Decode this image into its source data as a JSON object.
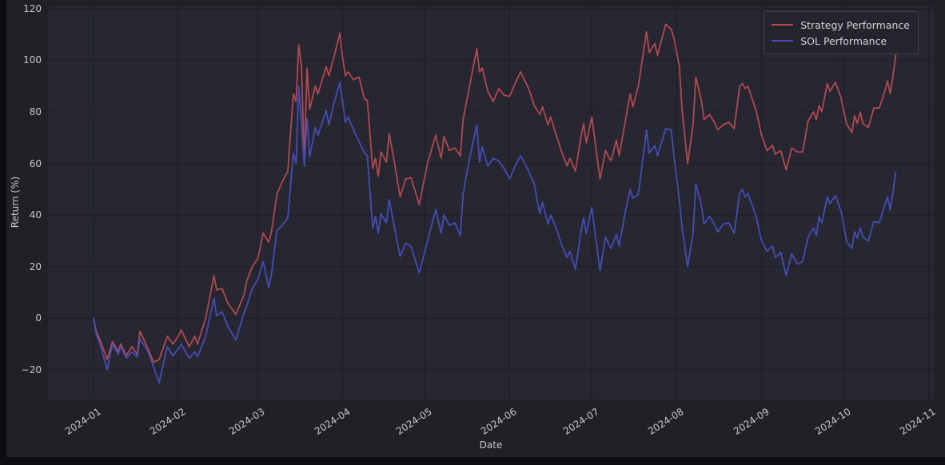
{
  "figure": {
    "x_axis": {
      "label": "Date",
      "tick_labels": [
        "2024-01",
        "2024-02",
        "2024-03",
        "2024-04",
        "2024-05",
        "2024-06",
        "2024-07",
        "2024-08",
        "2024-09",
        "2024-10",
        "2024-11"
      ],
      "tick_days": [
        0,
        31,
        60,
        91,
        121,
        152,
        182,
        213,
        244,
        274,
        305
      ]
    },
    "y_axis": {
      "label": "Return (%)",
      "ticks": [
        -20,
        0,
        20,
        40,
        60,
        80,
        100,
        120
      ]
    },
    "colors": {
      "page_background": "#0c0d10",
      "figure_background": "#202125",
      "plot_background": "#262730",
      "gridline": "#1d1e24",
      "tick_text": "#c6c7cc",
      "legend_text": "#d2d3d8",
      "strategy_line": "#b1494f",
      "sol_line": "#454db5"
    }
  },
  "chart_data": {
    "type": "line",
    "title": "",
    "xlabel": "Date",
    "ylabel": "Return (%)",
    "grid": true,
    "legend_position": "upper right",
    "ylim": [
      -31.5,
      120.9
    ],
    "xlim_days": [
      -16.6,
      306.9
    ],
    "x_dates": [
      "2024-01-01",
      "2024-01-02",
      "2024-01-04",
      "2024-01-06",
      "2024-01-08",
      "2024-01-10",
      "2024-01-11",
      "2024-01-13",
      "2024-01-15",
      "2024-01-17",
      "2024-01-18",
      "2024-01-21",
      "2024-01-23",
      "2024-01-25",
      "2024-01-28",
      "2024-01-30",
      "2024-02-01",
      "2024-02-02",
      "2024-02-05",
      "2024-02-07",
      "2024-02-08",
      "2024-02-11",
      "2024-02-14",
      "2024-02-15",
      "2024-02-17",
      "2024-02-19",
      "2024-02-22",
      "2024-02-25",
      "2024-02-26",
      "2024-02-28",
      "2024-03-01",
      "2024-03-03",
      "2024-03-05",
      "2024-03-06",
      "2024-03-08",
      "2024-03-10",
      "2024-03-12",
      "2024-03-14",
      "2024-03-15",
      "2024-03-16",
      "2024-03-17",
      "2024-03-18",
      "2024-03-19",
      "2024-03-20",
      "2024-03-22",
      "2024-03-23",
      "2024-03-26",
      "2024-03-27",
      "2024-03-29",
      "2024-03-31",
      "2024-04-01",
      "2024-04-02",
      "2024-04-03",
      "2024-04-05",
      "2024-04-07",
      "2024-04-09",
      "2024-04-10",
      "2024-04-12",
      "2024-04-13",
      "2024-04-14",
      "2024-04-15",
      "2024-04-17",
      "2024-04-18",
      "2024-04-20",
      "2024-04-22",
      "2024-04-24",
      "2024-04-26",
      "2024-04-29",
      "2024-05-02",
      "2024-05-05",
      "2024-05-07",
      "2024-05-08",
      "2024-05-10",
      "2024-05-12",
      "2024-05-14",
      "2024-05-15",
      "2024-05-17",
      "2024-05-20",
      "2024-05-21",
      "2024-05-22",
      "2024-05-24",
      "2024-05-26",
      "2024-05-28",
      "2024-05-30",
      "2024-06-01",
      "2024-06-03",
      "2024-06-05",
      "2024-06-08",
      "2024-06-10",
      "2024-06-12",
      "2024-06-13",
      "2024-06-15",
      "2024-06-16",
      "2024-06-18",
      "2024-06-20",
      "2024-06-22",
      "2024-06-23",
      "2024-06-25",
      "2024-06-27",
      "2024-06-28",
      "2024-06-29",
      "2024-07-01",
      "2024-07-04",
      "2024-07-06",
      "2024-07-08",
      "2024-07-10",
      "2024-07-11",
      "2024-07-13",
      "2024-07-15",
      "2024-07-16",
      "2024-07-18",
      "2024-07-21",
      "2024-07-22",
      "2024-07-24",
      "2024-07-25",
      "2024-07-28",
      "2024-07-30",
      "2024-07-31",
      "2024-08-02",
      "2024-08-03",
      "2024-08-05",
      "2024-08-07",
      "2024-08-08",
      "2024-08-10",
      "2024-08-11",
      "2024-08-13",
      "2024-08-15",
      "2024-08-16",
      "2024-08-18",
      "2024-08-20",
      "2024-08-22",
      "2024-08-24",
      "2024-08-25",
      "2024-08-26",
      "2024-08-27",
      "2024-08-30",
      "2024-09-01",
      "2024-09-03",
      "2024-09-05",
      "2024-09-06",
      "2024-09-08",
      "2024-09-10",
      "2024-09-12",
      "2024-09-14",
      "2024-09-16",
      "2024-09-18",
      "2024-09-20",
      "2024-09-21",
      "2024-09-22",
      "2024-09-23",
      "2024-09-25",
      "2024-09-26",
      "2024-09-28",
      "2024-09-30",
      "2024-10-01",
      "2024-10-02",
      "2024-10-04",
      "2024-10-05",
      "2024-10-06",
      "2024-10-07",
      "2024-10-08",
      "2024-10-10",
      "2024-10-12",
      "2024-10-14",
      "2024-10-16",
      "2024-10-17",
      "2024-10-18",
      "2024-10-19",
      "2024-10-20"
    ],
    "series": [
      {
        "name": "Strategy Performance",
        "color": "#b1494f",
        "values": [
          0,
          -5,
          -10,
          -16,
          -9,
          -13,
          -10,
          -14.5,
          -11,
          -14,
          -5,
          -12,
          -17,
          -16,
          -7,
          -10,
          -7,
          -4.5,
          -11,
          -7,
          -10,
          0,
          16.5,
          11,
          11.5,
          6,
          1.5,
          9,
          14.5,
          20,
          23,
          33,
          29.5,
          33.5,
          48,
          53,
          57,
          87,
          84,
          106,
          97,
          60,
          97,
          81,
          90,
          87,
          97.5,
          94,
          102,
          110.5,
          101,
          94,
          95.5,
          92.5,
          93.5,
          85,
          84.5,
          58,
          62,
          55,
          64.5,
          60.5,
          71.5,
          60,
          47,
          54,
          54.5,
          44,
          60,
          71,
          62,
          70.5,
          65,
          66,
          63,
          77,
          88,
          104.5,
          95.5,
          97,
          88,
          84,
          89,
          86.5,
          86,
          91,
          95.5,
          89,
          82.5,
          79,
          82,
          75,
          78,
          71,
          64.5,
          59,
          62,
          57,
          70,
          75.5,
          68,
          78,
          54,
          65,
          61,
          69,
          63,
          75,
          87,
          82,
          90,
          111,
          103,
          106.5,
          102,
          114,
          112,
          108.5,
          97.5,
          80.5,
          60,
          75,
          93.5,
          84.5,
          77,
          79,
          75.5,
          73,
          75,
          76,
          73.5,
          90,
          91,
          89,
          90,
          80.5,
          71,
          65,
          67,
          63.5,
          65,
          57.5,
          66,
          64.5,
          64.5,
          76.5,
          80,
          77,
          82.5,
          80,
          91,
          88,
          91.5,
          85.5,
          80.5,
          75.5,
          72,
          78.5,
          75.5,
          80,
          75.5,
          74,
          81.5,
          81.5,
          88,
          92,
          87,
          94,
          102
        ]
      },
      {
        "name": "SOL Performance",
        "color": "#454db5",
        "values": [
          0,
          -6,
          -12,
          -20,
          -10,
          -14,
          -11,
          -15.5,
          -13,
          -15,
          -8,
          -13,
          -19,
          -25,
          -11,
          -14.5,
          -12,
          -10,
          -15.5,
          -13,
          -15,
          -7,
          7.8,
          1,
          2.5,
          -3,
          -8.5,
          2,
          5,
          11.5,
          15,
          22,
          12,
          17,
          34,
          36,
          39,
          64,
          60,
          90,
          75,
          59,
          77.5,
          62.5,
          74,
          71,
          80.5,
          75,
          84,
          91.5,
          84,
          76,
          78,
          73,
          68.5,
          64,
          63,
          35,
          39.5,
          33,
          40.5,
          37,
          46,
          35,
          24,
          29,
          28,
          17.5,
          30,
          42,
          33,
          40,
          36,
          37,
          32,
          48,
          60,
          75,
          60.5,
          66.5,
          59,
          62,
          61,
          58,
          54,
          59,
          63,
          57,
          52,
          40.5,
          45,
          36.5,
          40,
          35,
          28.5,
          23.5,
          26,
          19,
          33,
          39,
          33,
          43,
          18.5,
          31.5,
          27,
          32.5,
          28,
          40,
          50,
          46.5,
          48,
          73,
          64,
          67,
          63,
          73.5,
          73,
          63,
          45.5,
          35,
          20,
          33,
          52,
          44,
          36.5,
          39.5,
          36,
          33.5,
          36.5,
          37,
          33,
          48.5,
          50,
          47,
          48.5,
          39.5,
          30,
          26,
          28,
          23.5,
          25.5,
          16.5,
          25,
          21,
          22,
          31.5,
          35,
          32,
          39.5,
          37,
          47,
          44.5,
          47.5,
          41.5,
          36.5,
          30,
          27,
          33.5,
          31,
          35,
          31.5,
          30,
          37.5,
          37,
          44,
          47,
          42,
          49,
          56.5
        ]
      }
    ]
  }
}
